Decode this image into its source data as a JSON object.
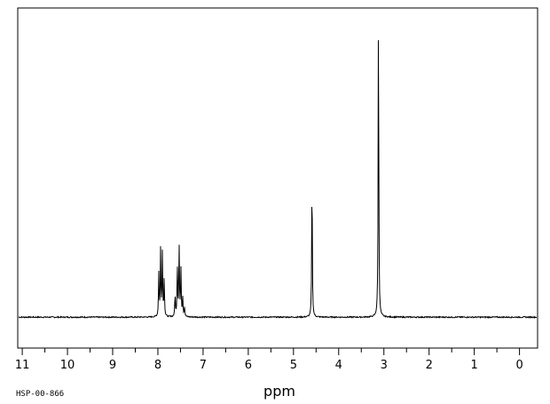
{
  "chart_data": {
    "type": "line",
    "title": "",
    "xlabel": "ppm",
    "ylabel": "",
    "xlim": [
      11.1,
      -0.4
    ],
    "ylim": [
      -0.1,
      1.0
    ],
    "x_reversed": true,
    "x_ticks": [
      11,
      10,
      9,
      8,
      7,
      6,
      5,
      4,
      3,
      2,
      1,
      0
    ],
    "x_minor_step": 0.5,
    "grid": false,
    "legend": "none",
    "baseline": 0.0,
    "peaks": [
      {
        "x": 7.98,
        "y": 0.14
      },
      {
        "x": 7.94,
        "y": 0.215
      },
      {
        "x": 7.9,
        "y": 0.21
      },
      {
        "x": 7.86,
        "y": 0.12
      },
      {
        "x": 7.62,
        "y": 0.07
      },
      {
        "x": 7.57,
        "y": 0.165
      },
      {
        "x": 7.53,
        "y": 0.23
      },
      {
        "x": 7.49,
        "y": 0.155
      },
      {
        "x": 7.45,
        "y": 0.06
      },
      {
        "x": 7.41,
        "y": 0.03
      },
      {
        "x": 4.59,
        "y": 0.465
      },
      {
        "x": 3.12,
        "y": 0.99
      }
    ],
    "line_color": "#000000",
    "series": [
      {
        "values": []
      }
    ]
  },
  "footer": {
    "code": "HSP-00-866"
  }
}
